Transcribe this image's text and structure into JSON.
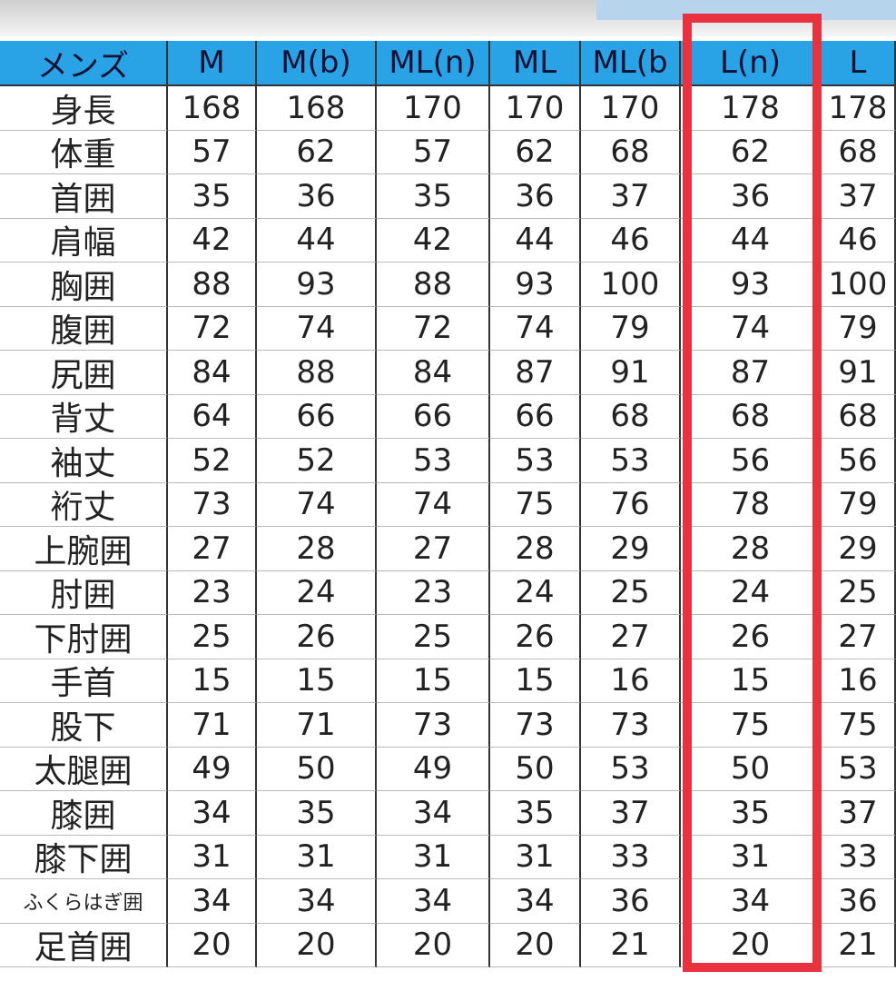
{
  "table": {
    "header": [
      "メンズ",
      "M",
      "M(b)",
      "ML(n)",
      "ML",
      "ML(b",
      "L(n)",
      "L"
    ],
    "rows": [
      [
        "身長",
        168,
        168,
        170,
        170,
        170,
        178,
        178
      ],
      [
        "体重",
        57,
        62,
        57,
        62,
        68,
        62,
        68
      ],
      [
        "首囲",
        35,
        36,
        35,
        36,
        37,
        36,
        37
      ],
      [
        "肩幅",
        42,
        44,
        42,
        44,
        46,
        44,
        46
      ],
      [
        "胸囲",
        88,
        93,
        88,
        93,
        100,
        93,
        100
      ],
      [
        "腹囲",
        72,
        74,
        72,
        74,
        79,
        74,
        79
      ],
      [
        "尻囲",
        84,
        88,
        84,
        87,
        91,
        87,
        91
      ],
      [
        "背丈",
        64,
        66,
        66,
        66,
        68,
        68,
        68
      ],
      [
        "袖丈",
        52,
        52,
        53,
        53,
        53,
        56,
        56
      ],
      [
        "裄丈",
        73,
        74,
        74,
        75,
        76,
        78,
        79
      ],
      [
        "上腕囲",
        27,
        28,
        27,
        28,
        29,
        28,
        29
      ],
      [
        "肘囲",
        23,
        24,
        23,
        24,
        25,
        24,
        25
      ],
      [
        "下肘囲",
        25,
        26,
        25,
        26,
        27,
        26,
        27
      ],
      [
        "手首",
        15,
        15,
        15,
        15,
        16,
        15,
        16
      ],
      [
        "股下",
        71,
        71,
        73,
        73,
        73,
        75,
        75
      ],
      [
        "太腿囲",
        49,
        50,
        49,
        50,
        53,
        50,
        53
      ],
      [
        "膝囲",
        34,
        35,
        34,
        35,
        37,
        35,
        37
      ],
      [
        "膝下囲",
        31,
        31,
        31,
        31,
        33,
        31,
        33
      ],
      [
        "ふくらはぎ囲",
        34,
        34,
        34,
        34,
        36,
        34,
        36
      ],
      [
        "足首囲",
        20,
        20,
        20,
        20,
        21,
        20,
        21
      ]
    ]
  }
}
